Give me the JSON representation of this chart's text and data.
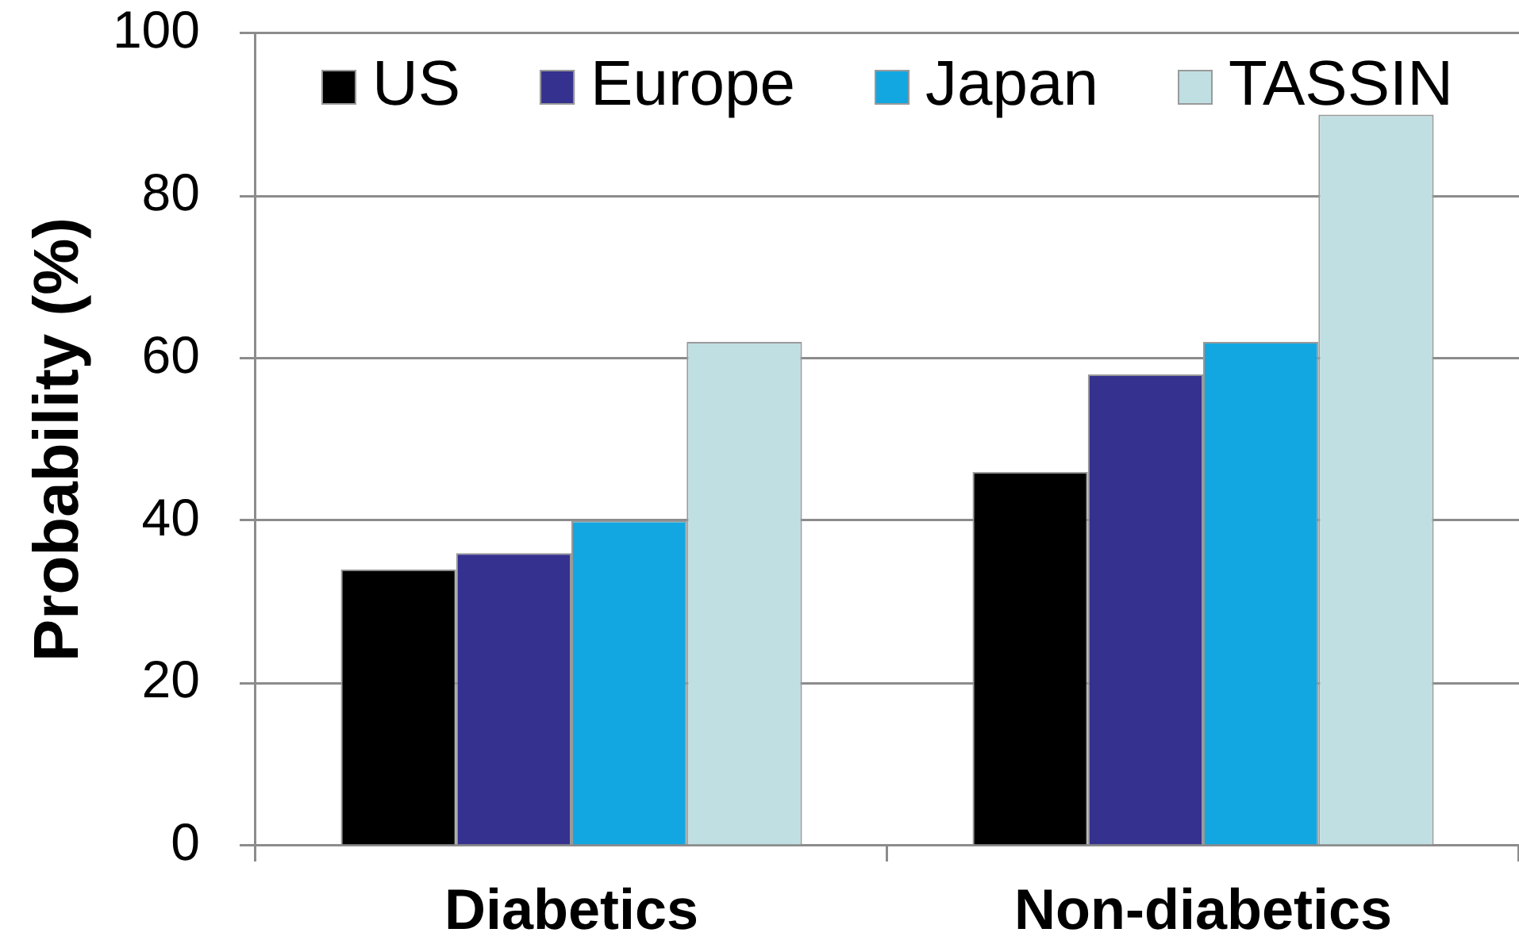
{
  "chart_data": {
    "type": "bar",
    "ylabel": "Probability (%)",
    "categories": [
      "Diabetics",
      "Non-diabetics"
    ],
    "series": [
      {
        "name": "US",
        "color": "#000000",
        "values": [
          34,
          46
        ]
      },
      {
        "name": "Europe",
        "color": "#35318f",
        "values": [
          36,
          58
        ]
      },
      {
        "name": "Japan",
        "color": "#12a7e1",
        "values": [
          40,
          62
        ]
      },
      {
        "name": "TASSIN",
        "color": "#c0dfe2",
        "values": [
          62,
          90
        ]
      }
    ],
    "ylim": [
      0,
      100
    ],
    "yticks": [
      0,
      20,
      40,
      60,
      80,
      100
    ],
    "grid": "y",
    "legend": "top"
  }
}
